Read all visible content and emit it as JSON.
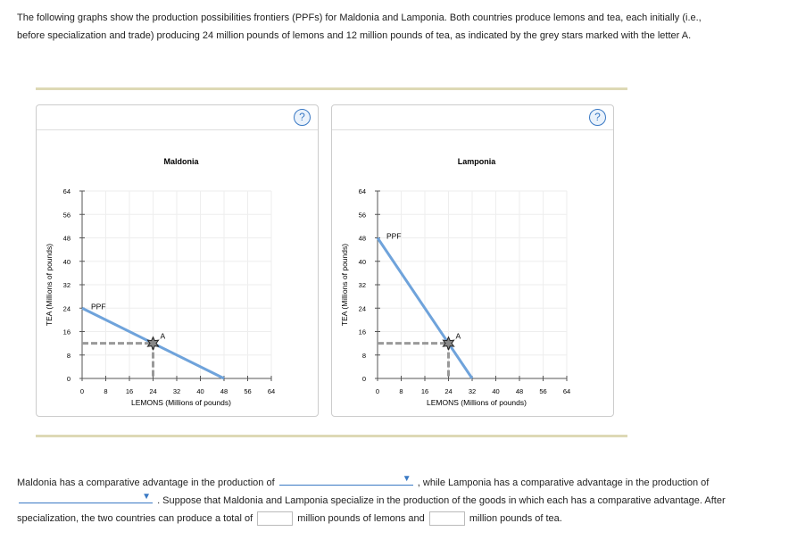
{
  "intro": "The following graphs show the production possibilities frontiers (PPFs) for Maldonia and Lamponia. Both countries produce lemons and tea, each initially (i.e., before specialization and trade) producing 24 million pounds of lemons and 12 million pounds of tea, as indicated by the grey stars marked with the letter A.",
  "help_label": "?",
  "chart_data": [
    {
      "type": "line",
      "title": "Maldonia",
      "xlabel": "LEMONS (Millions of pounds)",
      "ylabel": "TEA (Millions of pounds)",
      "xlim": [
        0,
        64
      ],
      "ylim": [
        0,
        64
      ],
      "xticks": [
        0,
        8,
        16,
        24,
        32,
        40,
        48,
        56,
        64
      ],
      "yticks": [
        0,
        8,
        16,
        24,
        32,
        40,
        48,
        56,
        64
      ],
      "grid": true,
      "series": [
        {
          "name": "PPF",
          "x": [
            0,
            48
          ],
          "y": [
            24,
            0
          ],
          "color": "#6fa3db"
        }
      ],
      "point": {
        "label": "A",
        "x": 24,
        "y": 12
      }
    },
    {
      "type": "line",
      "title": "Lamponia",
      "xlabel": "LEMONS (Millions of pounds)",
      "ylabel": "TEA (Millions of pounds)",
      "xlim": [
        0,
        64
      ],
      "ylim": [
        0,
        64
      ],
      "xticks": [
        0,
        8,
        16,
        24,
        32,
        40,
        48,
        56,
        64
      ],
      "yticks": [
        0,
        8,
        16,
        24,
        32,
        40,
        48,
        56,
        64
      ],
      "grid": true,
      "series": [
        {
          "name": "PPF",
          "x": [
            0,
            32
          ],
          "y": [
            48,
            0
          ],
          "color": "#6fa3db"
        }
      ],
      "point": {
        "label": "A",
        "x": 24,
        "y": 12
      }
    }
  ],
  "question": {
    "p1": "Maldonia has a comparative advantage in the production of",
    "p2": ", while Lamponia has a comparative advantage in the production of",
    "p3": ". Suppose that Maldonia and Lamponia specialize in the production of the goods in which each has a comparative advantage. After specialization, the two countries can produce a total of",
    "p4": "million pounds of lemons and",
    "p5": "million pounds of tea.",
    "dropdown1": "",
    "dropdown2": "",
    "lemons_total": "",
    "tea_total": ""
  }
}
